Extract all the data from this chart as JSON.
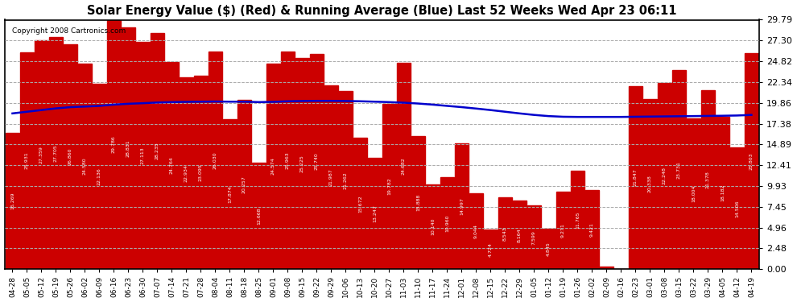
{
  "title": "Solar Energy Value ($) (Red) & Running Average (Blue) Last 52 Weeks Wed Apr 23 06:11",
  "copyright": "Copyright 2008 Cartronics.com",
  "bar_color": "#cc0000",
  "line_color": "#0000cc",
  "background_color": "#ffffff",
  "grid_color": "#aaaaaa",
  "yticks": [
    0.0,
    2.48,
    4.96,
    7.45,
    9.93,
    12.41,
    14.89,
    17.38,
    19.86,
    22.34,
    24.82,
    27.3,
    29.79
  ],
  "categories": [
    "04-28",
    "05-05",
    "05-12",
    "05-19",
    "05-26",
    "06-02",
    "06-09",
    "06-16",
    "06-23",
    "06-30",
    "07-07",
    "07-14",
    "07-21",
    "07-28",
    "08-04",
    "08-11",
    "08-18",
    "08-25",
    "09-01",
    "09-08",
    "09-15",
    "09-22",
    "09-29",
    "10-06",
    "10-13",
    "10-20",
    "10-27",
    "11-03",
    "11-10",
    "11-17",
    "11-24",
    "12-01",
    "12-08",
    "12-15",
    "12-22",
    "12-29",
    "01-05",
    "01-12",
    "01-19",
    "01-26",
    "02-02",
    "02-09",
    "02-16",
    "02-23",
    "03-01",
    "03-08",
    "03-15",
    "03-22",
    "03-29",
    "04-05",
    "04-12",
    "04-19"
  ],
  "values": [
    16.269,
    25.931,
    27.359,
    27.705,
    26.86,
    24.58,
    22.136,
    29.786,
    28.831,
    27.113,
    28.235,
    24.764,
    22.934,
    23.095,
    26.03,
    17.874,
    20.257,
    12.668,
    24.574,
    25.963,
    25.225,
    25.74,
    21.987,
    21.262,
    15.672,
    13.247,
    19.782,
    24.682,
    15.888,
    10.14,
    10.96,
    14.997,
    9.044,
    4.724,
    8.543,
    8.164,
    7.599,
    4.845,
    9.271,
    11.765,
    9.421,
    0.317,
    0.0,
    21.847,
    20.338,
    22.248,
    23.731,
    18.004,
    21.378,
    18.182,
    14.506,
    25.803
  ],
  "running_avg": [
    18.6,
    18.8,
    19.0,
    19.2,
    19.35,
    19.42,
    19.5,
    19.65,
    19.75,
    19.82,
    19.9,
    19.95,
    19.98,
    20.0,
    20.02,
    20.0,
    20.0,
    19.95,
    19.98,
    20.05,
    20.08,
    20.1,
    20.1,
    20.08,
    20.05,
    20.0,
    19.95,
    19.88,
    19.78,
    19.65,
    19.5,
    19.35,
    19.18,
    19.0,
    18.8,
    18.6,
    18.42,
    18.28,
    18.2,
    18.18,
    18.18,
    18.18,
    18.18,
    18.2,
    18.22,
    18.24,
    18.26,
    18.28,
    18.3,
    18.32,
    18.35,
    18.42
  ]
}
